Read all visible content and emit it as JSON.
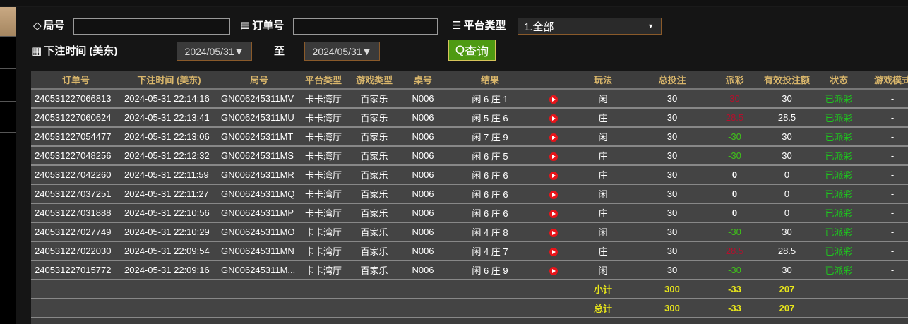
{
  "filters": {
    "round_label": "局号",
    "round_value": "",
    "order_label": "订单号",
    "order_value": "",
    "platform_label": "平台类型",
    "platform_value": "1.全部",
    "time_label": "下注时间 (美东)",
    "date_from": "2024/05/31▼",
    "to_label": "至",
    "date_to": "2024/05/31▼",
    "query_label": "查询"
  },
  "icons": {
    "round": "tag-icon",
    "order": "clipboard-icon",
    "platform": "server-icon",
    "time": "calendar-icon",
    "query": "search-icon",
    "video": "play-icon"
  },
  "colors": {
    "header_text": "#d9b66b",
    "positive_payout": "#b3102d",
    "negative_payout": "#3fc21a",
    "status": "#1ec51e",
    "summary": "#e9e71a",
    "query_button": "#4e9a12"
  },
  "table": {
    "columns": [
      "订单号",
      "下注时间 (美东)",
      "局号",
      "平台类型",
      "游戏类型",
      "桌号",
      "结果",
      "",
      "玩法",
      "总投注",
      "派彩",
      "有效投注额",
      "状态",
      "游戏模式"
    ],
    "rows": [
      [
        "240531227066813",
        "2024-05-31 22:14:16",
        "GN006245311MV",
        "卡卡湾厅",
        "百家乐",
        "N006",
        "闲 6 庄 1",
        "闲",
        "30",
        "30",
        "30",
        "已派彩",
        "-"
      ],
      [
        "240531227060624",
        "2024-05-31 22:13:41",
        "GN006245311MU",
        "卡卡湾厅",
        "百家乐",
        "N006",
        "闲 5 庄 6",
        "庄",
        "30",
        "28.5",
        "28.5",
        "已派彩",
        "-"
      ],
      [
        "240531227054477",
        "2024-05-31 22:13:06",
        "GN006245311MT",
        "卡卡湾厅",
        "百家乐",
        "N006",
        "闲 7 庄 9",
        "闲",
        "30",
        "-30",
        "30",
        "已派彩",
        "-"
      ],
      [
        "240531227048256",
        "2024-05-31 22:12:32",
        "GN006245311MS",
        "卡卡湾厅",
        "百家乐",
        "N006",
        "闲 6 庄 5",
        "庄",
        "30",
        "-30",
        "30",
        "已派彩",
        "-"
      ],
      [
        "240531227042260",
        "2024-05-31 22:11:59",
        "GN006245311MR",
        "卡卡湾厅",
        "百家乐",
        "N006",
        "闲 6 庄 6",
        "庄",
        "30",
        "0",
        "0",
        "已派彩",
        "-"
      ],
      [
        "240531227037251",
        "2024-05-31 22:11:27",
        "GN006245311MQ",
        "卡卡湾厅",
        "百家乐",
        "N006",
        "闲 6 庄 6",
        "闲",
        "30",
        "0",
        "0",
        "已派彩",
        "-"
      ],
      [
        "240531227031888",
        "2024-05-31 22:10:56",
        "GN006245311MP",
        "卡卡湾厅",
        "百家乐",
        "N006",
        "闲 6 庄 6",
        "庄",
        "30",
        "0",
        "0",
        "已派彩",
        "-"
      ],
      [
        "240531227027749",
        "2024-05-31 22:10:29",
        "GN006245311MO",
        "卡卡湾厅",
        "百家乐",
        "N006",
        "闲 4 庄 8",
        "闲",
        "30",
        "-30",
        "30",
        "已派彩",
        "-"
      ],
      [
        "240531227022030",
        "2024-05-31 22:09:54",
        "GN006245311MN",
        "卡卡湾厅",
        "百家乐",
        "N006",
        "闲 4 庄 7",
        "庄",
        "30",
        "28.5",
        "28.5",
        "已派彩",
        "-"
      ],
      [
        "240531227015772",
        "2024-05-31 22:09:16",
        "GN006245311M...",
        "卡卡湾厅",
        "百家乐",
        "N006",
        "闲 6 庄 9",
        "闲",
        "30",
        "-30",
        "30",
        "已派彩",
        "-"
      ]
    ],
    "subtotal": {
      "label": "小计",
      "total_bet": "300",
      "payout": "-33",
      "valid_bet": "207"
    },
    "total": {
      "label": "总计",
      "total_bet": "300",
      "payout": "-33",
      "valid_bet": "207"
    }
  }
}
